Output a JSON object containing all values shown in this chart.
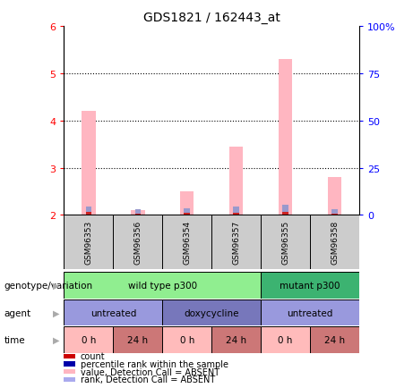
{
  "title": "GDS1821 / 162443_at",
  "samples": [
    "GSM96353",
    "GSM96356",
    "GSM96354",
    "GSM96357",
    "GSM96355",
    "GSM96358"
  ],
  "pink_bar_heights": [
    4.2,
    2.1,
    2.5,
    3.45,
    5.3,
    2.8
  ],
  "blue_bar_heights": [
    2.18,
    2.12,
    2.15,
    2.18,
    2.22,
    2.12
  ],
  "red_bar_heights": [
    2.06,
    2.03,
    2.05,
    2.05,
    2.06,
    2.03
  ],
  "ylim_left": [
    2,
    6
  ],
  "ylim_right": [
    0,
    100
  ],
  "yticks_left": [
    2,
    3,
    4,
    5,
    6
  ],
  "yticks_right": [
    0,
    25,
    50,
    75,
    100
  ],
  "ytick_labels_right": [
    "0",
    "25",
    "50",
    "75",
    "100%"
  ],
  "genotype_row": [
    {
      "label": "wild type p300",
      "cols": [
        0,
        1,
        2,
        3
      ],
      "color": "#90EE90"
    },
    {
      "label": "mutant p300",
      "cols": [
        4,
        5
      ],
      "color": "#3CB371"
    }
  ],
  "agent_row": [
    {
      "label": "untreated",
      "cols": [
        0,
        1
      ],
      "color": "#9999DD"
    },
    {
      "label": "doxycycline",
      "cols": [
        2,
        3
      ],
      "color": "#7777BB"
    },
    {
      "label": "untreated",
      "cols": [
        4,
        5
      ],
      "color": "#9999DD"
    }
  ],
  "time_row": [
    {
      "label": "0 h",
      "cols": [
        0
      ],
      "color": "#FFBBBB"
    },
    {
      "label": "24 h",
      "cols": [
        1
      ],
      "color": "#CC7777"
    },
    {
      "label": "0 h",
      "cols": [
        2
      ],
      "color": "#FFBBBB"
    },
    {
      "label": "24 h",
      "cols": [
        3
      ],
      "color": "#CC7777"
    },
    {
      "label": "0 h",
      "cols": [
        4
      ],
      "color": "#FFBBBB"
    },
    {
      "label": "24 h",
      "cols": [
        5
      ],
      "color": "#CC7777"
    }
  ],
  "legend_items": [
    {
      "color": "#CC0000",
      "label": "count"
    },
    {
      "color": "#0000AA",
      "label": "percentile rank within the sample"
    },
    {
      "color": "#FFB6C1",
      "label": "value, Detection Call = ABSENT"
    },
    {
      "color": "#AAAAEE",
      "label": "rank, Detection Call = ABSENT"
    }
  ],
  "pink_bar_color": "#FFB6C1",
  "blue_bar_color": "#9999CC",
  "red_bar_color": "#CC2222",
  "sample_bg_color": "#CCCCCC",
  "arrow_color": "#AAAAAA",
  "row_labels": [
    "genotype/variation",
    "agent",
    "time"
  ]
}
